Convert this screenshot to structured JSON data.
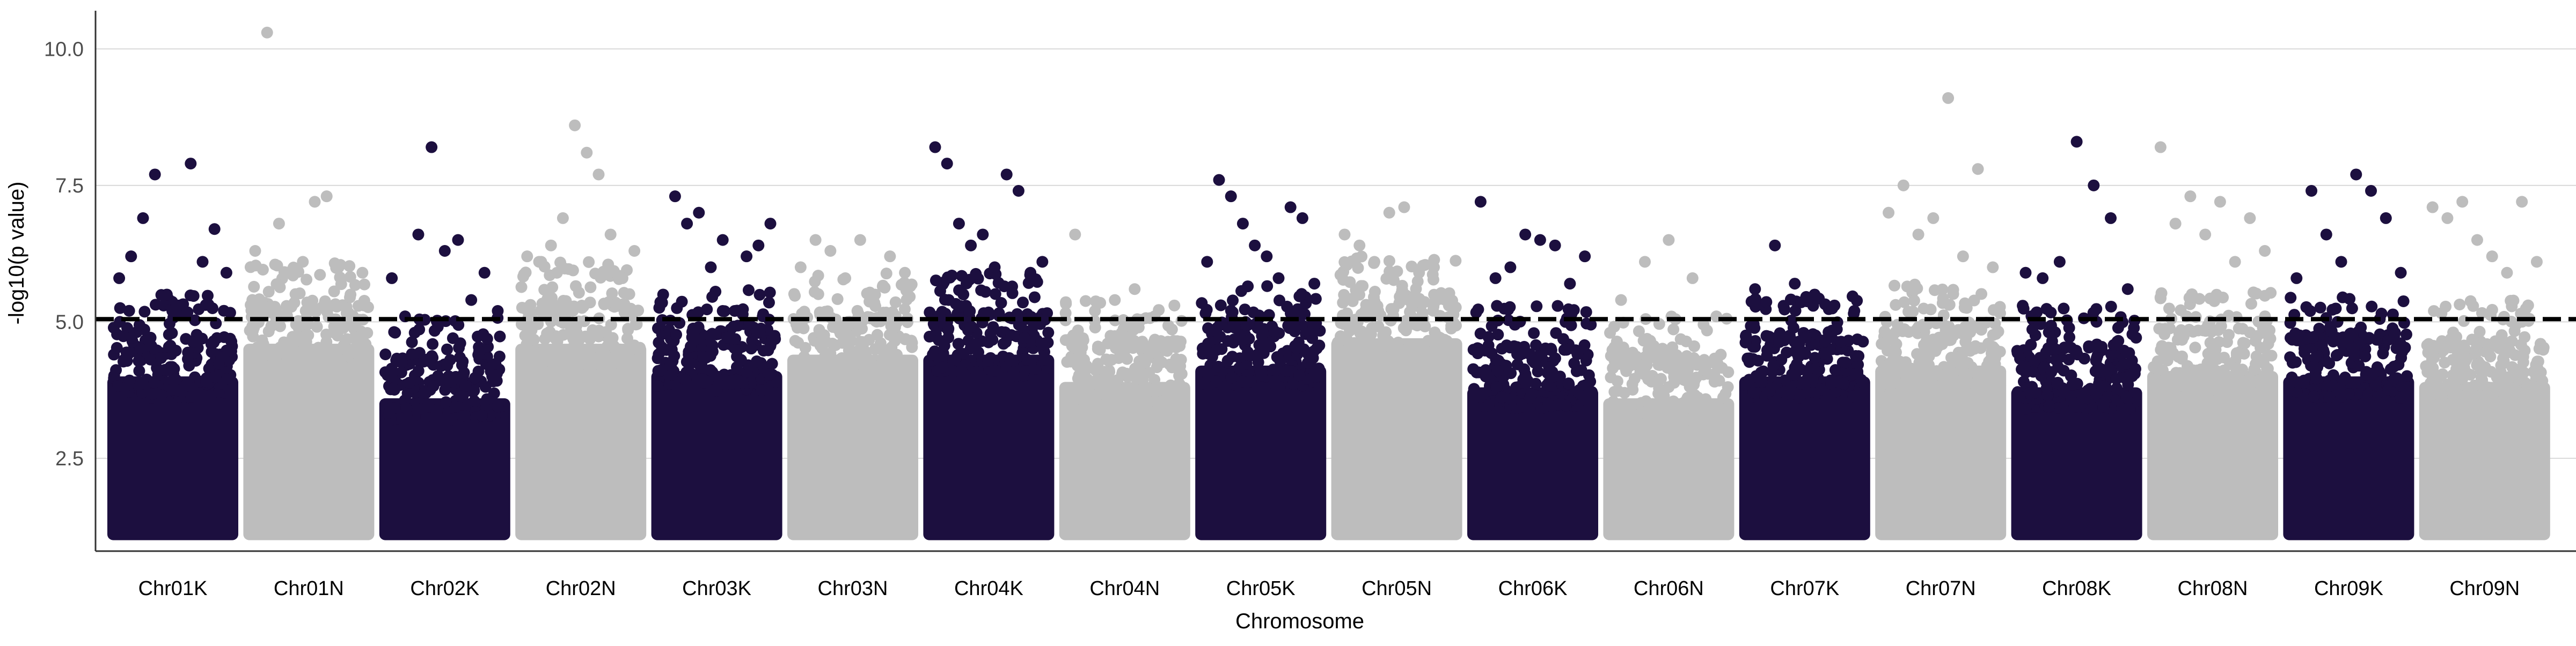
{
  "chart_data": {
    "type": "scatter",
    "subtype": "manhattan",
    "title": "",
    "xlabel": "Chromosome",
    "ylabel": "-log10(p value)",
    "ylim": [
      0.8,
      10.7
    ],
    "yticks": [
      2.5,
      5.0,
      7.5,
      10.0
    ],
    "ytick_labels": [
      "2.5",
      "5.0",
      "7.5",
      "10.0"
    ],
    "grid": "horizontal major lines only",
    "threshold": {
      "value": 5.05,
      "style": "dashed",
      "color": "#000000"
    },
    "colors": {
      "odd_chromosome": "#1c0f3f",
      "even_chromosome": "#bdbdbd",
      "gridline": "#d9d9d9",
      "axis": "#333333"
    },
    "min_plotted_value": 1.0,
    "dense_band": "points fill continuously from 1.0 up to about the listed baseline in every chromosome",
    "categories": [
      "Chr01K",
      "Chr01N",
      "Chr02K",
      "Chr02N",
      "Chr03K",
      "Chr03N",
      "Chr04K",
      "Chr04N",
      "Chr05K",
      "Chr05N",
      "Chr06K",
      "Chr06N",
      "Chr07K",
      "Chr07N",
      "Chr08K",
      "Chr08N",
      "Chr09K",
      "Chr09N"
    ],
    "chromosomes": [
      {
        "name": "Chr01K",
        "color_group": "odd",
        "baseline": 4.0,
        "top_points": [
          5.8,
          6.2,
          6.9,
          7.7,
          5.5,
          5.3,
          7.9,
          6.1,
          6.7,
          5.9
        ]
      },
      {
        "name": "Chr01N",
        "color_group": "even",
        "baseline": 4.6,
        "top_points": [
          6.3,
          10.3,
          6.8,
          5.9,
          6.1,
          7.2,
          7.3,
          6.0,
          5.5,
          5.9
        ]
      },
      {
        "name": "Chr02K",
        "color_group": "odd",
        "baseline": 3.6,
        "top_points": [
          5.8,
          5.1,
          6.6,
          8.2,
          6.3,
          6.5,
          5.4,
          5.9,
          5.2
        ]
      },
      {
        "name": "Chr02N",
        "color_group": "even",
        "baseline": 4.6,
        "top_points": [
          6.2,
          6.1,
          6.4,
          6.9,
          8.6,
          8.1,
          7.7,
          6.6,
          5.8,
          6.3
        ]
      },
      {
        "name": "Chr03K",
        "color_group": "odd",
        "baseline": 4.1,
        "top_points": [
          5.5,
          7.3,
          6.8,
          7.0,
          6.0,
          6.5,
          5.2,
          6.2,
          6.4,
          6.8
        ]
      },
      {
        "name": "Chr03N",
        "color_group": "even",
        "baseline": 4.4,
        "top_points": [
          6.0,
          6.5,
          6.3,
          5.8,
          6.5,
          5.5,
          6.2,
          5.9
        ]
      },
      {
        "name": "Chr04K",
        "color_group": "odd",
        "baseline": 4.4,
        "top_points": [
          8.2,
          7.9,
          6.8,
          6.4,
          6.6,
          6.0,
          7.7,
          7.4,
          5.9,
          6.1
        ]
      },
      {
        "name": "Chr04N",
        "color_group": "even",
        "baseline": 3.9,
        "top_points": [
          6.6,
          5.2,
          5.4,
          5.6,
          5.1,
          5.3
        ]
      },
      {
        "name": "Chr05K",
        "color_group": "odd",
        "baseline": 4.2,
        "top_points": [
          6.1,
          7.6,
          7.3,
          6.8,
          6.4,
          6.2,
          5.8,
          7.1,
          6.9,
          5.7
        ]
      },
      {
        "name": "Chr05N",
        "color_group": "even",
        "baseline": 4.7,
        "top_points": [
          6.6,
          6.4,
          6.1,
          7.0,
          7.1,
          5.9,
          6.0,
          5.3
        ]
      },
      {
        "name": "Chr06K",
        "color_group": "odd",
        "baseline": 3.8,
        "top_points": [
          7.2,
          5.8,
          6.0,
          6.6,
          6.5,
          6.4,
          5.7,
          6.2
        ]
      },
      {
        "name": "Chr06N",
        "color_group": "even",
        "baseline": 3.6,
        "top_points": [
          5.4,
          6.1,
          6.5,
          5.8,
          5.1
        ]
      },
      {
        "name": "Chr07K",
        "color_group": "odd",
        "baseline": 4.0,
        "top_points": [
          5.6,
          6.4,
          5.7,
          5.5,
          5.3,
          5.2
        ]
      },
      {
        "name": "Chr07N",
        "color_group": "even",
        "baseline": 4.2,
        "top_points": [
          7.0,
          7.5,
          6.6,
          6.9,
          9.1,
          6.2,
          7.8,
          6.0
        ]
      },
      {
        "name": "Chr08K",
        "color_group": "odd",
        "baseline": 3.8,
        "top_points": [
          5.9,
          5.8,
          6.1,
          8.3,
          7.5,
          6.9,
          5.6
        ]
      },
      {
        "name": "Chr08N",
        "color_group": "even",
        "baseline": 4.1,
        "top_points": [
          8.2,
          6.8,
          7.3,
          6.6,
          7.2,
          6.1,
          6.9,
          6.3
        ]
      },
      {
        "name": "Chr09K",
        "color_group": "odd",
        "baseline": 4.0,
        "top_points": [
          5.8,
          7.4,
          6.6,
          6.1,
          7.7,
          7.4,
          6.9,
          5.9
        ]
      },
      {
        "name": "Chr09N",
        "color_group": "even",
        "baseline": 3.9,
        "top_points": [
          7.1,
          6.9,
          7.2,
          6.5,
          6.2,
          5.9,
          7.2,
          6.1
        ]
      }
    ]
  }
}
